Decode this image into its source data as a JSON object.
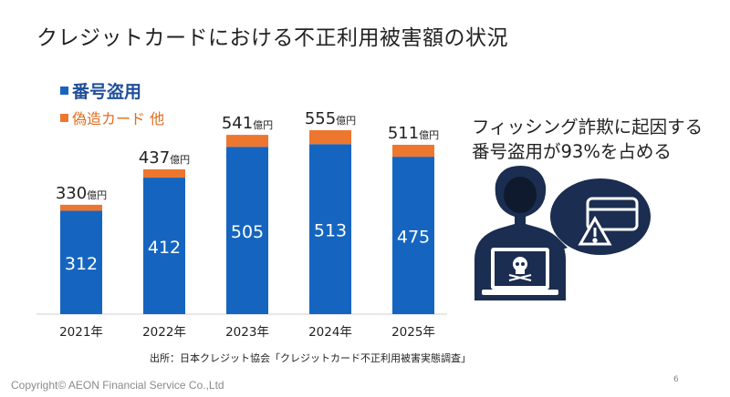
{
  "title": "クレジットカードにおける不正利用被害額の状況",
  "legend": {
    "primary": "番号盗用",
    "secondary": "偽造カード 他"
  },
  "colors": {
    "primary": "#1565c0",
    "secondary": "#ee7730",
    "legend_primary": "#1f4e9a",
    "legend_secondary": "#e36c1e"
  },
  "chart_data": {
    "type": "bar",
    "stacked": true,
    "categories": [
      "2021年",
      "2022年",
      "2023年",
      "2024年",
      "2025年"
    ],
    "series": [
      {
        "name": "番号盗用",
        "values": [
          312,
          412,
          505,
          513,
          475
        ]
      },
      {
        "name": "偽造カード 他",
        "values": [
          18,
          25,
          36,
          42,
          36
        ]
      }
    ],
    "totals": [
      330,
      437,
      541,
      555,
      511
    ],
    "total_unit": "億円",
    "ylim": [
      0,
      555
    ],
    "title": "",
    "xlabel": "",
    "ylabel": ""
  },
  "note": {
    "line1": "フィッシング詐欺に起因する",
    "line2": "番号盗用が93%を占める"
  },
  "source": "出所：日本クレジット協会「クレジットカード不正利用被害実態調査」",
  "copyright": "Copyright© AEON Financial Service Co.,Ltd",
  "page_number": "6",
  "illustration": {
    "figure": "hacker-icon",
    "bubble": "warning-card-icon"
  }
}
